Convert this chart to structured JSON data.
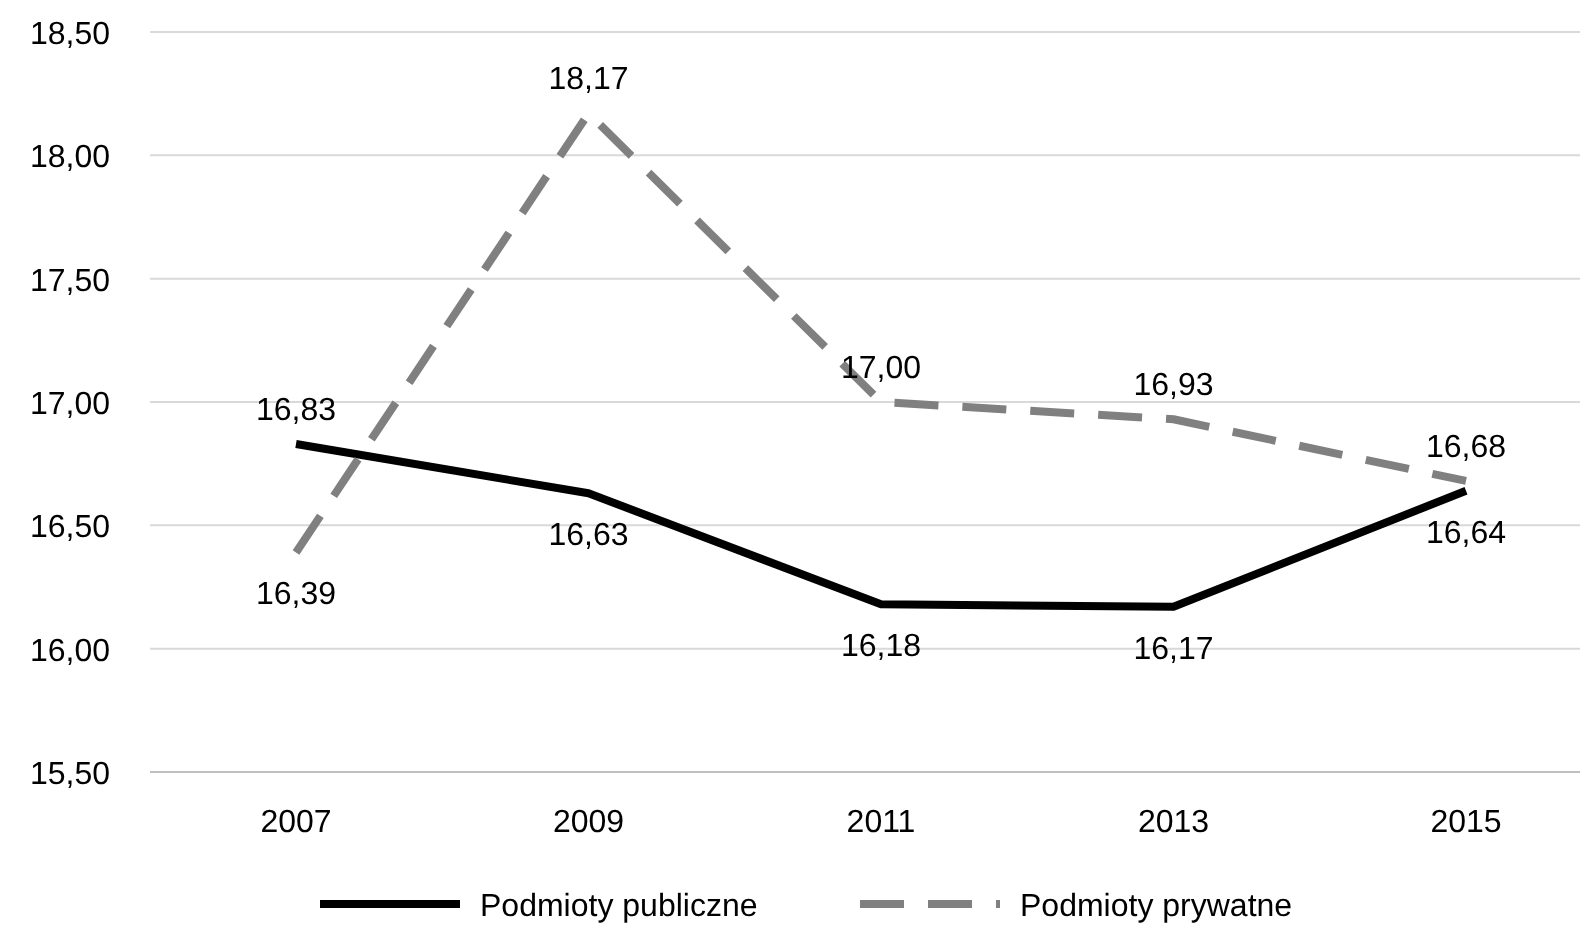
{
  "chart_data": {
    "type": "line",
    "categories": [
      "2007",
      "2009",
      "2011",
      "2013",
      "2015"
    ],
    "series": [
      {
        "name": "Podmioty publiczne",
        "color": "#000000",
        "line_style": "solid",
        "values": [
          16.83,
          16.63,
          16.18,
          16.17,
          16.64
        ],
        "value_labels": [
          "16,83",
          "16,63",
          "16,18",
          "16,17",
          "16,64"
        ]
      },
      {
        "name": "Podmioty prywatne",
        "color": "#808080",
        "line_style": "dashed",
        "values": [
          16.39,
          18.17,
          17.0,
          16.93,
          16.68
        ],
        "value_labels": [
          "16,39",
          "18,17",
          "17,00",
          "16,93",
          "16,68"
        ]
      }
    ],
    "ylim": [
      15.5,
      18.5
    ],
    "yticks": [
      {
        "value": 15.5,
        "label": "15,50"
      },
      {
        "value": 16,
        "label": "16,00"
      },
      {
        "value": 16.5,
        "label": "16,50"
      },
      {
        "value": 17,
        "label": "17,00"
      },
      {
        "value": 17.5,
        "label": "17,50"
      },
      {
        "value": 18,
        "label": "18,00"
      },
      {
        "value": 18.5,
        "label": "18,50"
      }
    ],
    "grid": "y",
    "legend": "bottom",
    "marker": "none"
  }
}
